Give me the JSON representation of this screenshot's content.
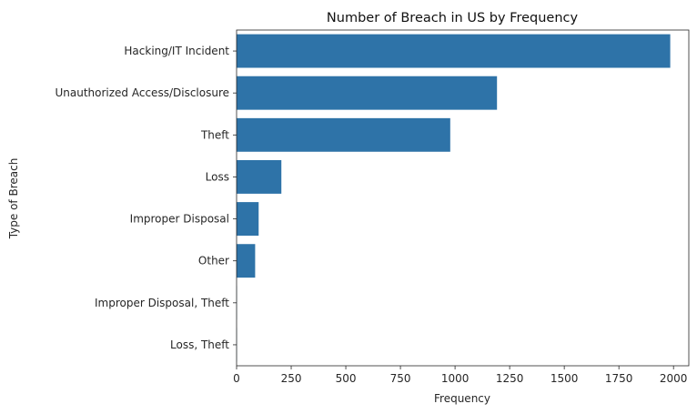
{
  "chart_data": {
    "type": "bar",
    "orientation": "horizontal",
    "title": "Number of Breach in US by Frequency",
    "xlabel": "Frequency",
    "ylabel": "Type of Breach",
    "categories": [
      "Hacking/IT Incident",
      "Unauthorized Access/Disclosure",
      "Theft",
      "Loss",
      "Improper Disposal",
      "Other",
      "Improper Disposal, Theft",
      "Loss, Theft"
    ],
    "values": [
      1985,
      1192,
      978,
      205,
      101,
      85,
      1,
      1
    ],
    "xlim": [
      0,
      2070
    ],
    "xticks": [
      0,
      250,
      500,
      750,
      1000,
      1250,
      1500,
      1750,
      2000
    ],
    "xtick_labels": [
      "0",
      "250",
      "500",
      "750",
      "1000",
      "1250",
      "1500",
      "1750",
      "2000"
    ],
    "bar_color": "#2e73a8",
    "grid": false,
    "legend": "none"
  }
}
